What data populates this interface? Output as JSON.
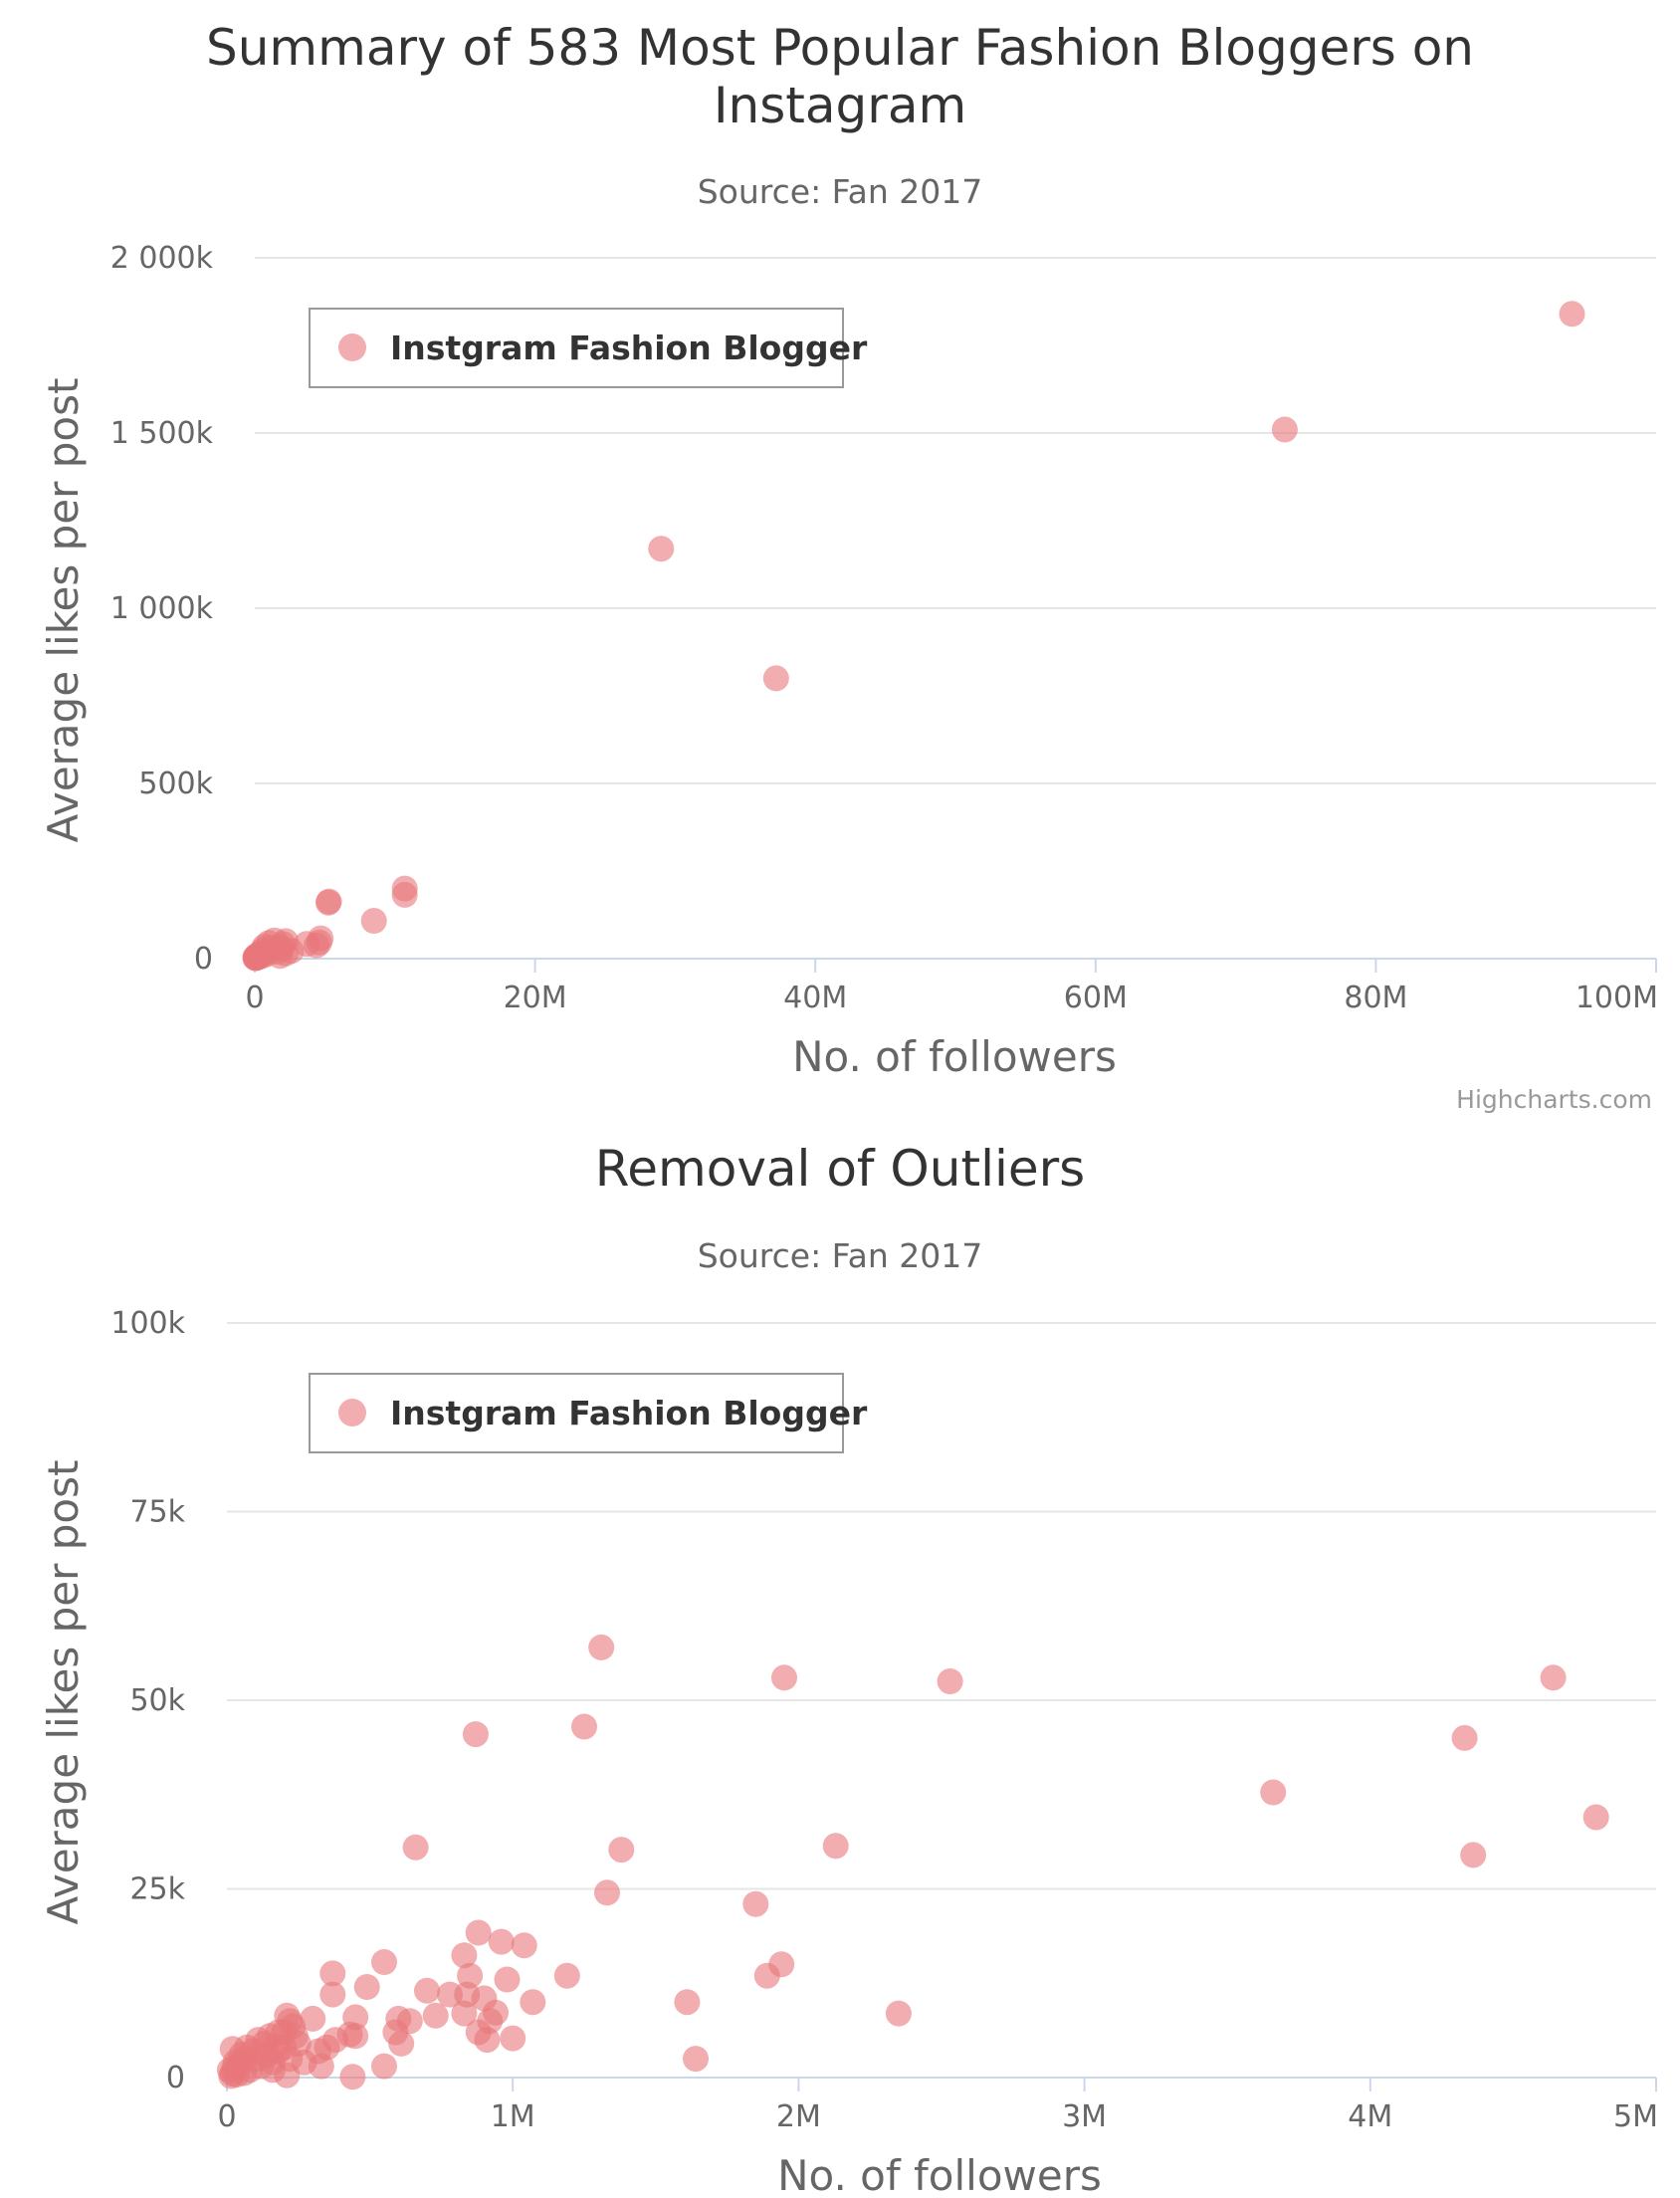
{
  "colors": {
    "point": "#e8767a"
  },
  "credits": "Highcharts.com",
  "chart_data": [
    {
      "type": "scatter",
      "title": "Summary of 583 Most Popular Fashion Bloggers on Instagram",
      "title_lines": [
        "Summary of 583 Most Popular Fashion Bloggers on",
        "Instagram"
      ],
      "subtitle": "Source: Fan 2017",
      "xlabel": "No. of followers",
      "ylabel": "Average likes per post",
      "xlim": [
        0,
        100000000
      ],
      "ylim": [
        0,
        2000000
      ],
      "x_ticks": [
        0,
        20000000,
        40000000,
        60000000,
        80000000,
        100000000
      ],
      "x_tick_labels": [
        "0",
        "20M",
        "40M",
        "60M",
        "80M",
        "100M"
      ],
      "y_ticks": [
        0,
        500000,
        1000000,
        1500000,
        2000000
      ],
      "y_tick_labels": [
        "0",
        "500k",
        "1 000k",
        "1 500k",
        "2 000k"
      ],
      "grid": true,
      "legend": "top-left",
      "series": [
        {
          "name": "Instgram Fashion Blogger",
          "points": [
            [
              94000000,
              1840000
            ],
            [
              73500000,
              1510000
            ],
            [
              29000000,
              1170000
            ],
            [
              37200000,
              800000
            ],
            [
              10700000,
              200000
            ],
            [
              10700000,
              182000
            ],
            [
              5300000,
              163000
            ],
            [
              5250000,
              160000
            ],
            [
              8500000,
              108000
            ],
            [
              4700000,
              58000
            ],
            [
              4600000,
              46000
            ],
            [
              4400000,
              38000
            ],
            [
              3700000,
              42000
            ],
            [
              2200000,
              50000
            ],
            [
              2000000,
              42000
            ],
            [
              1900000,
              30000
            ],
            [
              2200000,
              15000
            ],
            [
              1400000,
              52000
            ],
            [
              1200000,
              30000
            ],
            [
              1000000,
              45000
            ],
            [
              900000,
              20000
            ],
            [
              800000,
              12000
            ],
            [
              600000,
              25000
            ],
            [
              500000,
              8000
            ],
            [
              400000,
              15000
            ],
            [
              300000,
              5000
            ],
            [
              200000,
              10000
            ],
            [
              150000,
              3000
            ],
            [
              100000,
              2000
            ],
            [
              80000,
              6000
            ],
            [
              50000,
              1000
            ],
            [
              30000,
              3000
            ],
            [
              1600000,
              20000
            ],
            [
              1800000,
              8000
            ],
            [
              2600000,
              22000
            ],
            [
              700000,
              35000
            ]
          ]
        }
      ]
    },
    {
      "type": "scatter",
      "title": "Removal of Outliers",
      "title_lines": [
        "Removal of Outliers"
      ],
      "subtitle": "Source: Fan 2017",
      "xlabel": "No. of followers",
      "ylabel": "Average likes per post",
      "xlim": [
        0,
        5000000
      ],
      "ylim": [
        0,
        100000
      ],
      "x_ticks": [
        0,
        1000000,
        2000000,
        3000000,
        4000000,
        5000000
      ],
      "x_tick_labels": [
        "0",
        "1M",
        "2M",
        "3M",
        "4M",
        "5M"
      ],
      "y_ticks": [
        0,
        25000,
        50000,
        75000,
        100000
      ],
      "y_tick_labels": [
        "0",
        "25k",
        "50k",
        "75k",
        "100k"
      ],
      "grid": true,
      "legend": "top-left",
      "series": [
        {
          "name": "Instgram Fashion Blogger",
          "points": [
            [
              1310000,
              57000
            ],
            [
              1950000,
              53000
            ],
            [
              2530000,
              52500
            ],
            [
              4640000,
              53000
            ],
            [
              870000,
              45500
            ],
            [
              1250000,
              46500
            ],
            [
              4330000,
              45000
            ],
            [
              3660000,
              37800
            ],
            [
              4790000,
              34500
            ],
            [
              660000,
              30500
            ],
            [
              1380000,
              30200
            ],
            [
              2130000,
              30700
            ],
            [
              4360000,
              29500
            ],
            [
              1330000,
              24500
            ],
            [
              1850000,
              23000
            ],
            [
              880000,
              19200
            ],
            [
              960000,
              18000
            ],
            [
              1040000,
              17500
            ],
            [
              830000,
              16200
            ],
            [
              550000,
              15300
            ],
            [
              1940000,
              15000
            ],
            [
              370000,
              13800
            ],
            [
              1190000,
              13500
            ],
            [
              1890000,
              13500
            ],
            [
              850000,
              13500
            ],
            [
              980000,
              13000
            ],
            [
              490000,
              12000
            ],
            [
              700000,
              11500
            ],
            [
              370000,
              11000
            ],
            [
              780000,
              11000
            ],
            [
              840000,
              11000
            ],
            [
              900000,
              10500
            ],
            [
              1070000,
              10000
            ],
            [
              1610000,
              10000
            ],
            [
              450000,
              8000
            ],
            [
              600000,
              7800
            ],
            [
              640000,
              7500
            ],
            [
              730000,
              8200
            ],
            [
              830000,
              8500
            ],
            [
              940000,
              8600
            ],
            [
              2350000,
              8500
            ],
            [
              300000,
              7800
            ],
            [
              220000,
              7500
            ],
            [
              210000,
              8200
            ],
            [
              450000,
              5500
            ],
            [
              880000,
              6000
            ],
            [
              920000,
              7500
            ],
            [
              1000000,
              5200
            ],
            [
              910000,
              5000
            ],
            [
              590000,
              6000
            ],
            [
              610000,
              4500
            ],
            [
              380000,
              5000
            ],
            [
              350000,
              4000
            ],
            [
              320000,
              3500
            ],
            [
              430000,
              5700
            ],
            [
              270000,
              2000
            ],
            [
              330000,
              1500
            ],
            [
              200000,
              4000
            ],
            [
              550000,
              1500
            ],
            [
              440000,
              100
            ],
            [
              1640000,
              2500
            ],
            [
              210000,
              300
            ],
            [
              180000,
              6000
            ],
            [
              150000,
              5500
            ],
            [
              130000,
              4500
            ],
            [
              110000,
              5000
            ],
            [
              90000,
              3500
            ],
            [
              70000,
              4000
            ],
            [
              60000,
              2500
            ],
            [
              50000,
              3000
            ],
            [
              40000,
              1500
            ],
            [
              30000,
              2000
            ],
            [
              20000,
              3800
            ],
            [
              20000,
              500
            ],
            [
              10000,
              1000
            ],
            [
              15000,
              200
            ],
            [
              100000,
              2500
            ],
            [
              120000,
              1500
            ],
            [
              140000,
              3000
            ],
            [
              160000,
              2000
            ],
            [
              180000,
              3500
            ],
            [
              220000,
              2500
            ],
            [
              240000,
              5500
            ],
            [
              250000,
              4500
            ],
            [
              80000,
              1000
            ],
            [
              60000,
              600
            ],
            [
              35000,
              400
            ],
            [
              25000,
              1200
            ],
            [
              170000,
              4200
            ],
            [
              200000,
              6000
            ],
            [
              230000,
              6800
            ],
            [
              160000,
              1000
            ]
          ]
        }
      ]
    }
  ]
}
